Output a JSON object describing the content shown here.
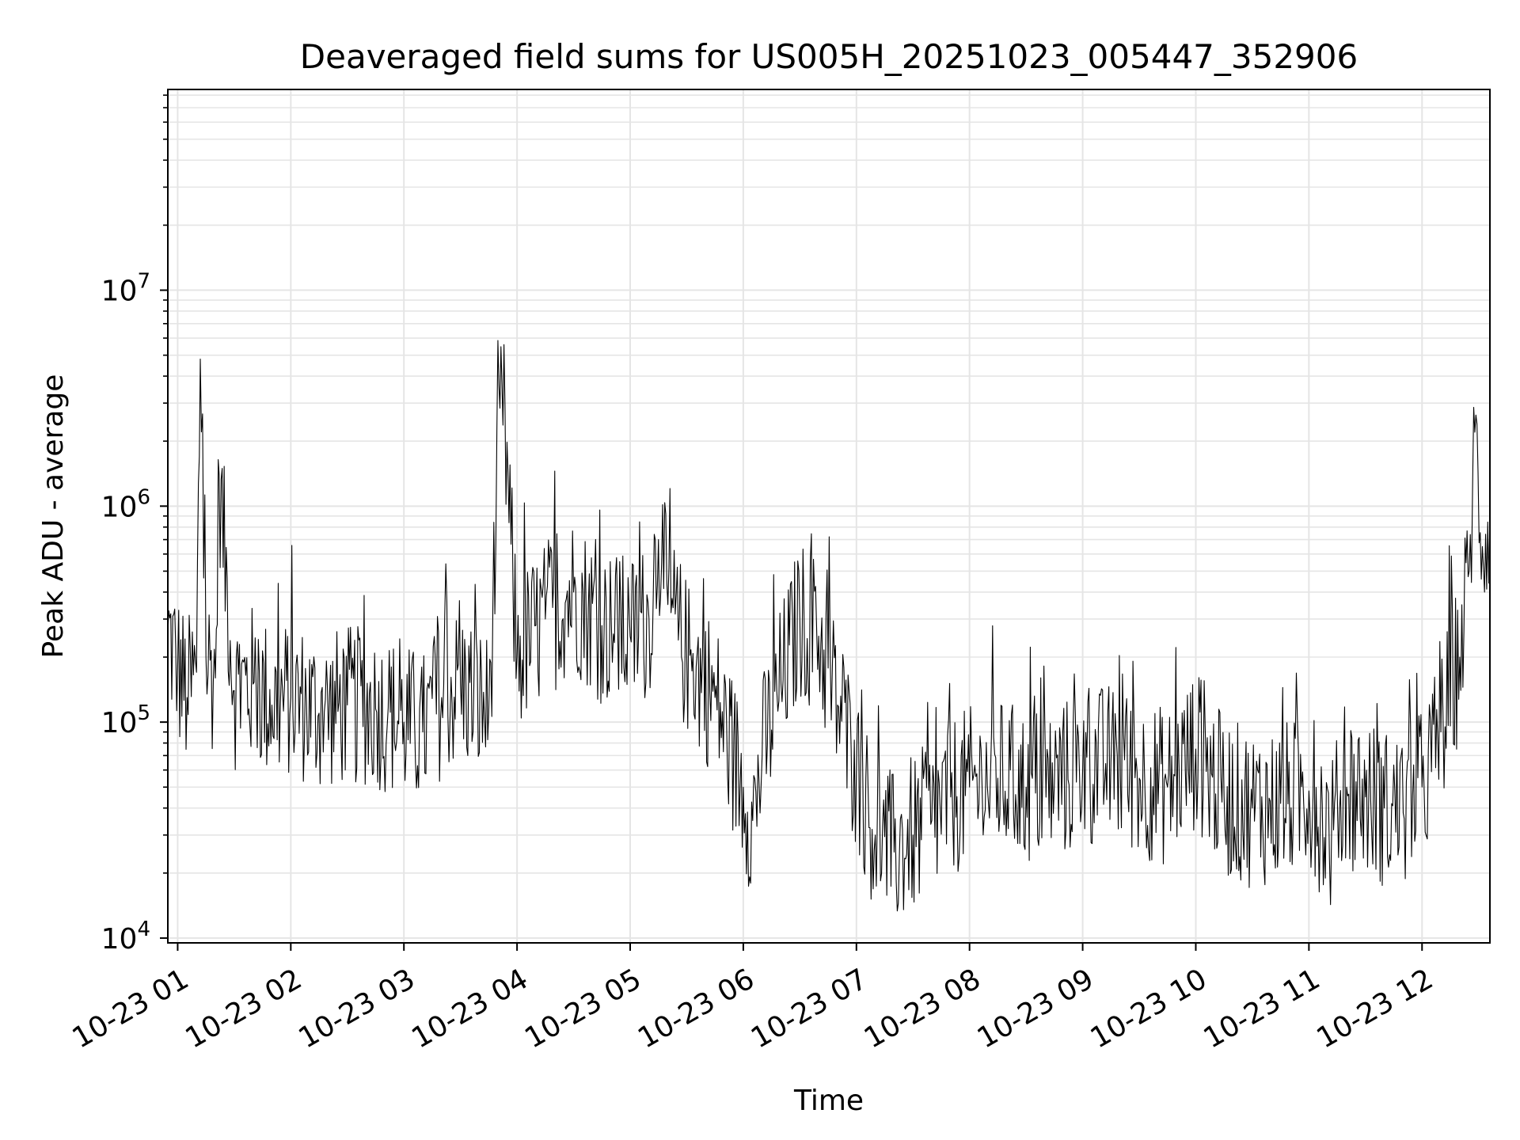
{
  "chart_data": {
    "type": "line",
    "title": "Deaveraged field sums for US005H_20251023_005447_352906",
    "xlabel": "Time",
    "ylabel": "Peak ADU - average",
    "x_axis": {
      "kind": "datetime",
      "range": [
        "2025-10-23 00:54:47",
        "2025-10-23 12:36:00"
      ],
      "ticks": [
        "2025-10-23 01:00",
        "2025-10-23 02:00",
        "2025-10-23 03:00",
        "2025-10-23 04:00",
        "2025-10-23 05:00",
        "2025-10-23 06:00",
        "2025-10-23 07:00",
        "2025-10-23 08:00",
        "2025-10-23 09:00",
        "2025-10-23 10:00",
        "2025-10-23 11:00",
        "2025-10-23 12:00"
      ],
      "tick_labels": [
        "10-23 01",
        "10-23 02",
        "10-23 03",
        "10-23 04",
        "10-23 05",
        "10-23 06",
        "10-23 07",
        "10-23 08",
        "10-23 09",
        "10-23 10",
        "10-23 11",
        "10-23 12"
      ]
    },
    "y_axis": {
      "scale": "log",
      "range": [
        9500,
        85000000
      ],
      "ticks": [
        10000,
        100000,
        1000000,
        10000000
      ],
      "tick_labels": [
        {
          "base": "10",
          "exp": "4"
        },
        {
          "base": "10",
          "exp": "5"
        },
        {
          "base": "10",
          "exp": "6"
        },
        {
          "base": "10",
          "exp": "7"
        }
      ]
    },
    "grid": true,
    "line_color": "#000000",
    "grid_color": "#e5e5e5",
    "series": [
      {
        "points": [
          [
            "2025-10-23 00:54:47",
            260000
          ],
          [
            "2025-10-23 01:00",
            180000
          ],
          [
            "2025-10-23 01:05",
            130000
          ],
          [
            "2025-10-23 01:10",
            170000
          ],
          [
            "2025-10-23 01:12",
            4800000
          ],
          [
            "2025-10-23 01:15",
            200000
          ],
          [
            "2025-10-23 01:20",
            160000
          ],
          [
            "2025-10-23 01:22",
            1400000
          ],
          [
            "2025-10-23 01:30",
            140000
          ],
          [
            "2025-10-23 01:40",
            150000
          ],
          [
            "2025-10-23 01:50",
            120000
          ],
          [
            "2025-10-23 02:00",
            130000
          ],
          [
            "2025-10-23 02:15",
            110000
          ],
          [
            "2025-10-23 02:30",
            120000
          ],
          [
            "2025-10-23 02:45",
            115000
          ],
          [
            "2025-10-23 03:00",
            100000
          ],
          [
            "2025-10-23 03:10",
            90000
          ],
          [
            "2025-10-23 03:20",
            130000
          ],
          [
            "2025-10-23 03:30",
            150000
          ],
          [
            "2025-10-23 03:45",
            110000
          ],
          [
            "2025-10-23 03:52",
            3700000
          ],
          [
            "2025-10-23 04:00",
            200000
          ],
          [
            "2025-10-23 04:15",
            300000
          ],
          [
            "2025-10-23 04:30",
            400000
          ],
          [
            "2025-10-23 04:45",
            280000
          ],
          [
            "2025-10-23 05:00",
            250000
          ],
          [
            "2025-10-23 05:10",
            300000
          ],
          [
            "2025-10-23 05:15",
            700000
          ],
          [
            "2025-10-23 05:20",
            350000
          ],
          [
            "2025-10-23 05:30",
            200000
          ],
          [
            "2025-10-23 05:45",
            130000
          ],
          [
            "2025-10-23 06:00",
            50000
          ],
          [
            "2025-10-23 06:05",
            35000
          ],
          [
            "2025-10-23 06:10",
            70000
          ],
          [
            "2025-10-23 06:20",
            150000
          ],
          [
            "2025-10-23 06:30",
            300000
          ],
          [
            "2025-10-23 06:40",
            250000
          ],
          [
            "2025-10-23 06:50",
            120000
          ],
          [
            "2025-10-23 07:00",
            60000
          ],
          [
            "2025-10-23 07:10",
            30000
          ],
          [
            "2025-10-23 07:20",
            25000
          ],
          [
            "2025-10-23 07:30",
            30000
          ],
          [
            "2025-10-23 07:40",
            35000
          ],
          [
            "2025-10-23 07:50",
            45000
          ],
          [
            "2025-10-23 08:00",
            50000
          ],
          [
            "2025-10-23 08:15",
            55000
          ],
          [
            "2025-10-23 08:30",
            50000
          ],
          [
            "2025-10-23 08:45",
            52000
          ],
          [
            "2025-10-23 09:00",
            60000
          ],
          [
            "2025-10-23 09:15",
            65000
          ],
          [
            "2025-10-23 09:30",
            55000
          ],
          [
            "2025-10-23 09:45",
            50000
          ],
          [
            "2025-10-23 10:00",
            75000
          ],
          [
            "2025-10-23 10:15",
            45000
          ],
          [
            "2025-10-23 10:30",
            40000
          ],
          [
            "2025-10-23 10:45",
            42000
          ],
          [
            "2025-10-23 11:00",
            48000
          ],
          [
            "2025-10-23 11:12",
            30000
          ],
          [
            "2025-10-23 11:20",
            50000
          ],
          [
            "2025-10-23 11:30",
            45000
          ],
          [
            "2025-10-23 11:40",
            40000
          ],
          [
            "2025-10-23 11:50",
            38000
          ],
          [
            "2025-10-23 12:00",
            50000
          ],
          [
            "2025-10-23 12:10",
            90000
          ],
          [
            "2025-10-23 12:20",
            200000
          ],
          [
            "2025-10-23 12:25",
            500000
          ],
          [
            "2025-10-23 12:28",
            2200000
          ],
          [
            "2025-10-23 12:32",
            650000
          ],
          [
            "2025-10-23 12:36",
            900000
          ]
        ]
      }
    ]
  }
}
